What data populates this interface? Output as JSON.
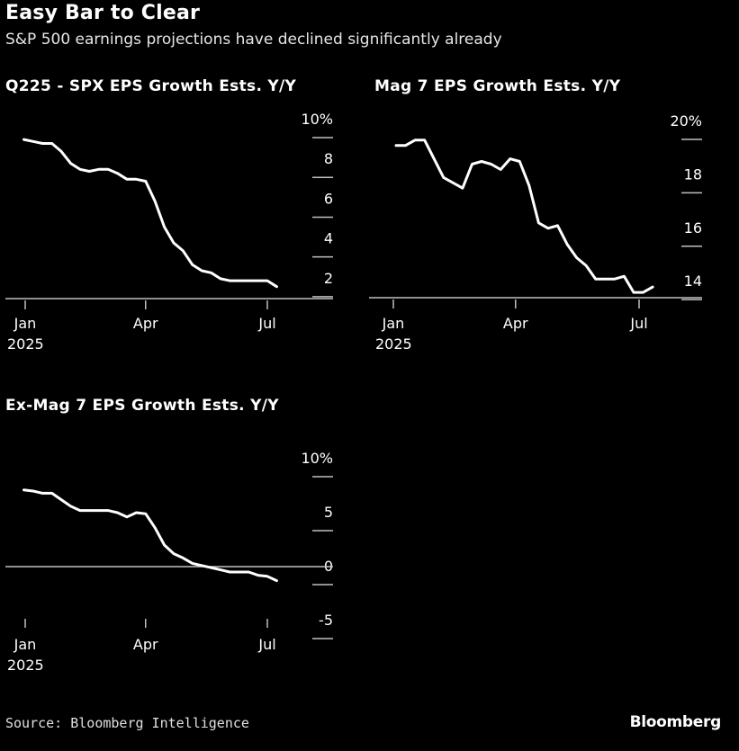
{
  "header": {
    "title": "Easy Bar to Clear",
    "subtitle": "S&P 500 earnings projections have declined significantly already"
  },
  "footer": {
    "source": "Source: Bloomberg Intelligence",
    "brand": "Bloomberg"
  },
  "colors": {
    "background": "#000000",
    "line": "#ffffff",
    "axis": "#bfbfbf"
  },
  "chart_data": [
    {
      "type": "line",
      "title": "Q225 - SPX EPS Growth Ests. Y/Y",
      "xlabel": "",
      "ylabel": "",
      "ylim": [
        1,
        10
      ],
      "yticks": [
        {
          "v": 10,
          "label": "10%"
        },
        {
          "v": 8,
          "label": "8"
        },
        {
          "v": 6,
          "label": "6"
        },
        {
          "v": 4,
          "label": "4"
        },
        {
          "v": 2,
          "label": "2"
        }
      ],
      "xticks": [
        {
          "date": "2025-01-01",
          "label": "Jan",
          "sublabel": "2025"
        },
        {
          "date": "2025-04-01",
          "label": "Apr",
          "sublabel": ""
        },
        {
          "date": "2025-07-01",
          "label": "Jul",
          "sublabel": ""
        }
      ],
      "zero_line": false,
      "grid": false,
      "x": [
        "2024-12-31",
        "2025-01-07",
        "2025-01-14",
        "2025-01-21",
        "2025-01-28",
        "2025-02-04",
        "2025-02-11",
        "2025-02-18",
        "2025-02-25",
        "2025-03-04",
        "2025-03-11",
        "2025-03-18",
        "2025-03-25",
        "2025-04-01",
        "2025-04-08",
        "2025-04-15",
        "2025-04-22",
        "2025-04-29",
        "2025-05-06",
        "2025-05-13",
        "2025-05-20",
        "2025-05-27",
        "2025-06-03",
        "2025-06-10",
        "2025-06-17",
        "2025-06-24",
        "2025-07-01",
        "2025-07-08"
      ],
      "values": [
        9.0,
        8.9,
        8.8,
        8.8,
        8.4,
        7.8,
        7.5,
        7.4,
        7.5,
        7.5,
        7.3,
        7.0,
        7.0,
        6.9,
        5.9,
        4.6,
        3.8,
        3.4,
        2.7,
        2.4,
        2.3,
        2.0,
        1.9,
        1.9,
        1.9,
        1.9,
        1.9,
        1.6
      ]
    },
    {
      "type": "line",
      "title": "Mag 7 EPS Growth Ests. Y/Y",
      "xlabel": "",
      "ylabel": "",
      "ylim": [
        13.4,
        20
      ],
      "yticks": [
        {
          "v": 20,
          "label": "20%"
        },
        {
          "v": 18,
          "label": "18"
        },
        {
          "v": 16,
          "label": "16"
        },
        {
          "v": 14,
          "label": "14"
        }
      ],
      "xticks": [
        {
          "date": "2025-01-01",
          "label": "Jan",
          "sublabel": "2025"
        },
        {
          "date": "2025-04-01",
          "label": "Apr",
          "sublabel": ""
        },
        {
          "date": "2025-07-01",
          "label": "Jul",
          "sublabel": ""
        }
      ],
      "zero_line": false,
      "grid": false,
      "x": [
        "2025-01-03",
        "2025-01-10",
        "2025-01-17",
        "2025-01-24",
        "2025-01-31",
        "2025-02-07",
        "2025-02-14",
        "2025-02-21",
        "2025-02-28",
        "2025-03-07",
        "2025-03-14",
        "2025-03-21",
        "2025-03-28",
        "2025-04-04",
        "2025-04-11",
        "2025-04-18",
        "2025-04-25",
        "2025-05-02",
        "2025-05-09",
        "2025-05-16",
        "2025-05-23",
        "2025-05-30",
        "2025-06-06",
        "2025-06-13",
        "2025-06-20",
        "2025-06-27",
        "2025-07-04",
        "2025-07-11"
      ],
      "values": [
        19.1,
        19.1,
        19.3,
        19.3,
        18.6,
        17.9,
        17.7,
        17.5,
        18.4,
        18.5,
        18.4,
        18.2,
        18.6,
        18.5,
        17.6,
        16.2,
        16.0,
        16.1,
        15.4,
        14.9,
        14.6,
        14.1,
        14.1,
        14.1,
        14.2,
        13.6,
        13.6,
        13.8
      ]
    },
    {
      "type": "line",
      "title": "Ex-Mag 7 EPS Growth Ests. Y/Y",
      "xlabel": "",
      "ylabel": "",
      "ylim": [
        -6,
        10
      ],
      "yticks": [
        {
          "v": 10,
          "label": "10%"
        },
        {
          "v": 5,
          "label": "5"
        },
        {
          "v": 0,
          "label": "0"
        },
        {
          "v": -5,
          "label": "-5"
        }
      ],
      "xticks": [
        {
          "date": "2025-01-01",
          "label": "Jan",
          "sublabel": "2025"
        },
        {
          "date": "2025-04-01",
          "label": "Apr",
          "sublabel": ""
        },
        {
          "date": "2025-07-01",
          "label": "Jul",
          "sublabel": ""
        }
      ],
      "zero_line": true,
      "grid": false,
      "x": [
        "2024-12-31",
        "2025-01-07",
        "2025-01-14",
        "2025-01-21",
        "2025-01-28",
        "2025-02-04",
        "2025-02-11",
        "2025-02-18",
        "2025-02-25",
        "2025-03-04",
        "2025-03-11",
        "2025-03-18",
        "2025-03-25",
        "2025-04-01",
        "2025-04-08",
        "2025-04-15",
        "2025-04-22",
        "2025-04-29",
        "2025-05-06",
        "2025-05-13",
        "2025-05-20",
        "2025-05-27",
        "2025-06-03",
        "2025-06-10",
        "2025-06-17",
        "2025-06-24",
        "2025-07-01",
        "2025-07-08"
      ],
      "values": [
        7.1,
        7.0,
        6.8,
        6.8,
        6.2,
        5.6,
        5.2,
        5.2,
        5.2,
        5.2,
        5.0,
        4.6,
        5.0,
        4.9,
        3.6,
        2.0,
        1.2,
        0.8,
        0.3,
        0.1,
        -0.1,
        -0.3,
        -0.5,
        -0.5,
        -0.5,
        -0.8,
        -0.9,
        -1.3
      ]
    }
  ]
}
